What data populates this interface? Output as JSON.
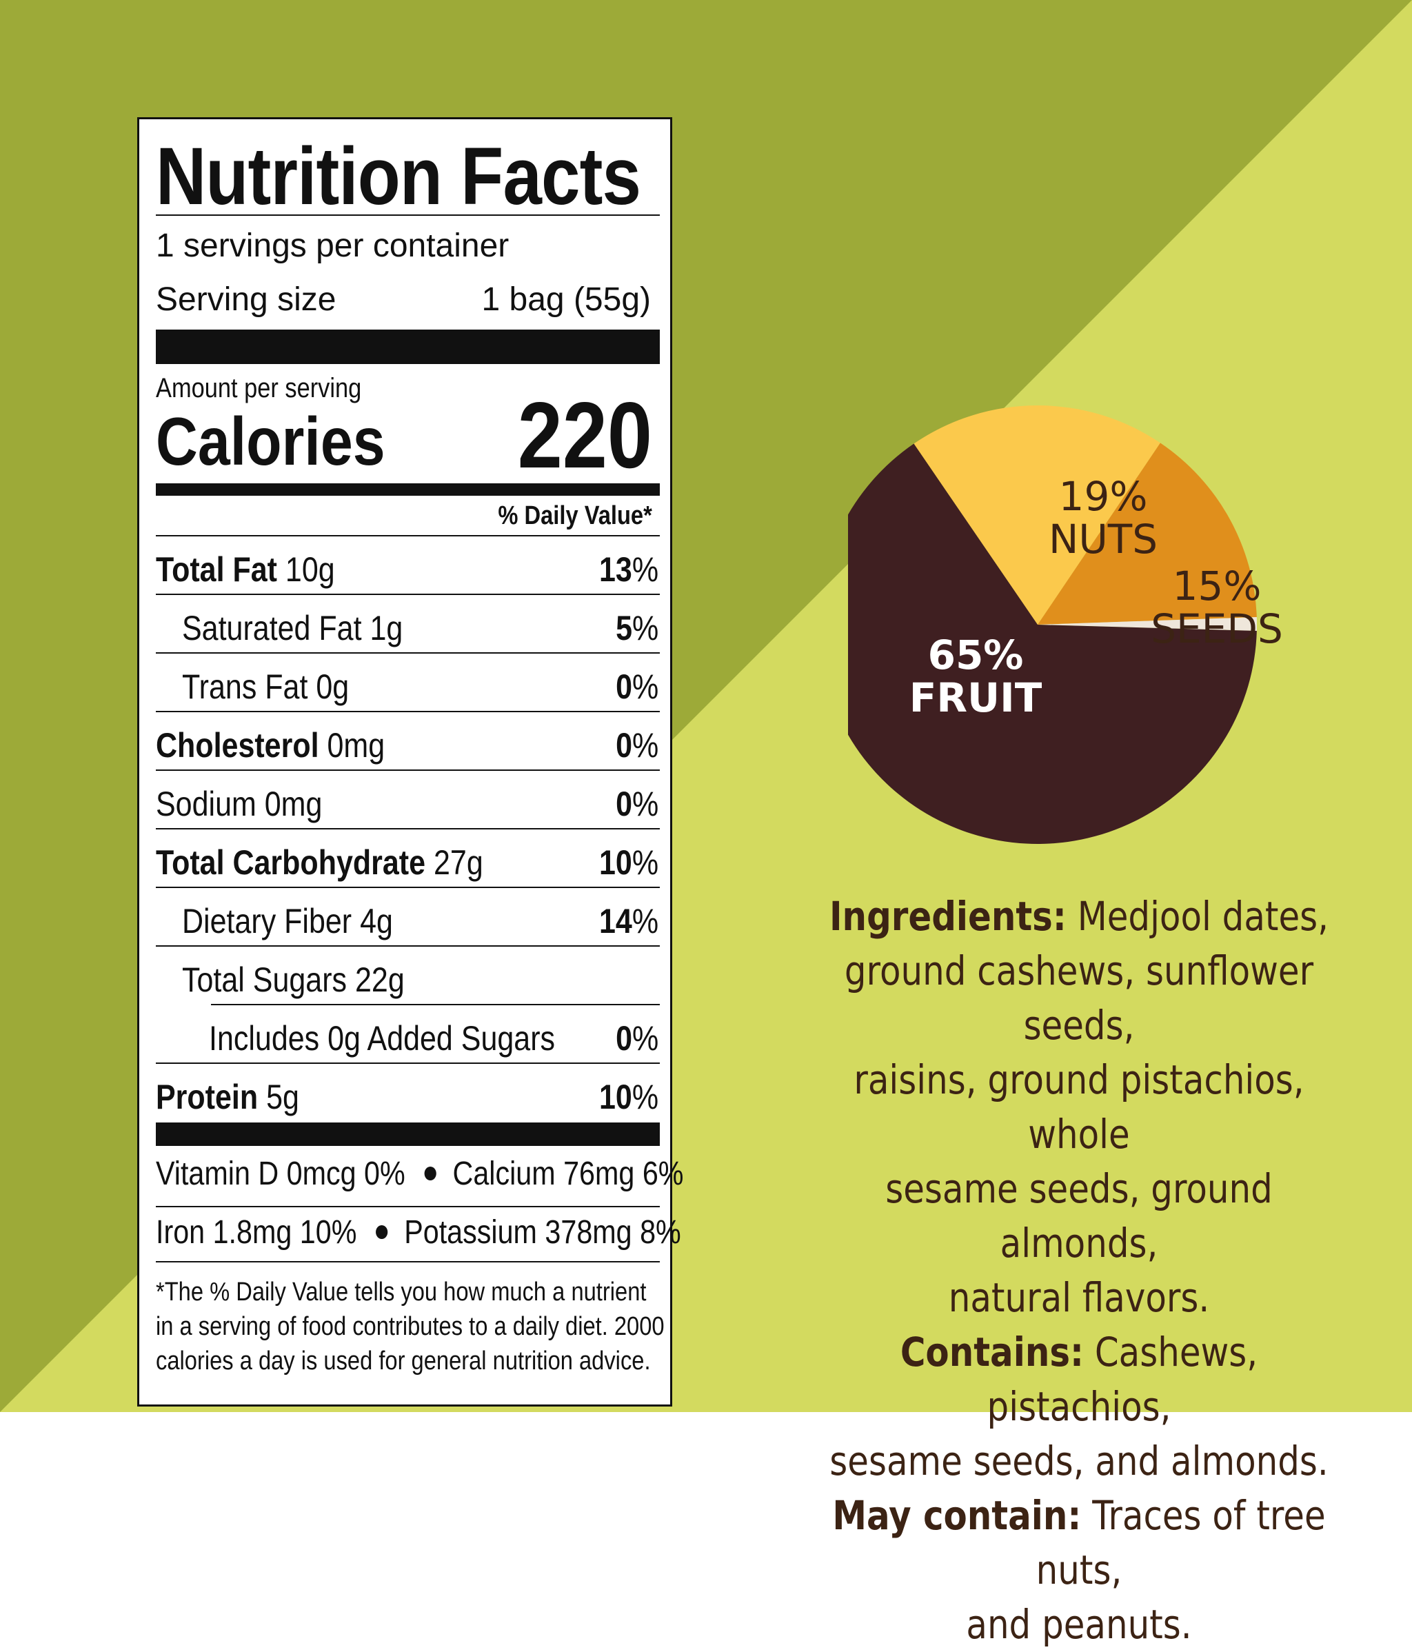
{
  "colors": {
    "olive": "#9daa38",
    "lime": "#d3da5f",
    "fruit": "#3f1f21",
    "nuts": "#fbc94c",
    "seeds": "#e08f1c",
    "ingredients_text": "#3c2314"
  },
  "nutrition": {
    "title": "Nutrition Facts",
    "servings_per_container": "1 servings per container",
    "serving_size_label": "Serving size",
    "serving_size_value": "1 bag (55g)",
    "amount_per_serving": "Amount per serving",
    "calories_label": "Calories",
    "calories_value": "220",
    "daily_value_header": "% Daily Value*",
    "rows": [
      {
        "name": "Total Fat",
        "amount": "10g",
        "dv_num": "13",
        "dv_sym": "%"
      },
      {
        "name": "Saturated Fat",
        "amount": "1g",
        "dv_num": "5",
        "dv_sym": "%"
      },
      {
        "name": "Trans Fat",
        "amount": "0g",
        "dv_num": "0",
        "dv_sym": "%"
      },
      {
        "name": "Cholesterol",
        "amount": "0mg",
        "dv_num": "0",
        "dv_sym": "%"
      },
      {
        "name": "Sodium",
        "amount": "0mg",
        "dv_num": "0",
        "dv_sym": "%"
      },
      {
        "name": "Total Carbohydrate",
        "amount": "27g",
        "dv_num": "10",
        "dv_sym": "%"
      },
      {
        "name": "Dietary Fiber",
        "amount": "4g",
        "dv_num": "14",
        "dv_sym": "%"
      },
      {
        "name": "Total Sugars",
        "amount": "22g",
        "dv_num": "",
        "dv_sym": ""
      },
      {
        "name": "Includes 0g Added Sugars",
        "amount": "",
        "dv_num": "0",
        "dv_sym": "%"
      },
      {
        "name": "Protein",
        "amount": "5g",
        "dv_num": "10",
        "dv_sym": "%"
      }
    ],
    "vitamins_line1_a": "Vitamin D 0mcg 0%",
    "vitamins_line1_b": "Calcium 76mg 6%",
    "vitamins_line2_a": "Iron 1.8mg 10%",
    "vitamins_line2_b": "Potassium 378mg 8%",
    "footnote_1": "*The % Daily Value tells you how much a nutrient",
    "footnote_2": "in a serving of food contributes to a daily diet. 2000",
    "footnote_3": "calories a day is used for general nutrition advice."
  },
  "chart_data": {
    "type": "pie",
    "slices": [
      {
        "pct_label": "65%",
        "label": "FRUIT",
        "value": 65,
        "color": "#3f1f21"
      },
      {
        "pct_label": "19%",
        "label": "NUTS",
        "value": 19,
        "color": "#fbc94c"
      },
      {
        "pct_label": "15%",
        "label": "SEEDS",
        "value": 15,
        "color": "#e08f1c"
      },
      {
        "pct_label": "",
        "label": "",
        "value": 1,
        "color": "#efe7db"
      }
    ]
  },
  "ingredients": {
    "ingredients_label": "Ingredients:",
    "ingredients_line1": " Medjool dates,",
    "ingredients_line2": "ground cashews, sunflower seeds,",
    "ingredients_line3": "raisins, ground pistachios, whole",
    "ingredients_line4": "sesame seeds, ground almonds,",
    "ingredients_line5": "natural flavors.",
    "contains_label": "Contains:",
    "contains_line1": " Cashews, pistachios,",
    "contains_line2": "sesame seeds, and almonds.",
    "may_contain_label": "May contain:",
    "may_contain_line1": " Traces of tree nuts,",
    "may_contain_line2": "and peanuts."
  }
}
